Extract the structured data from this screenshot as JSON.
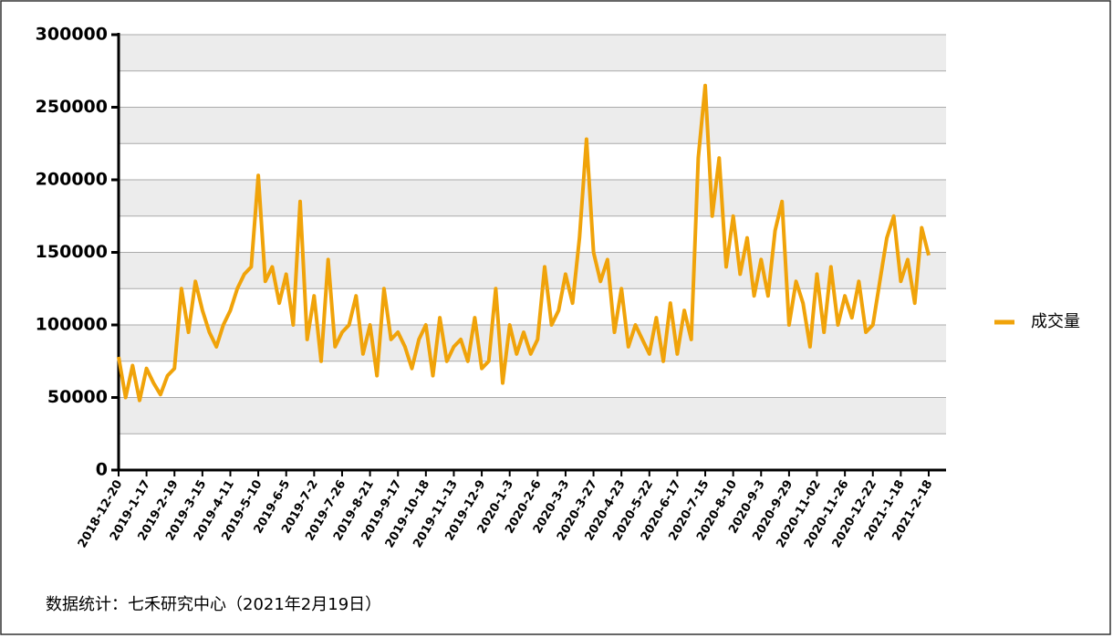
{
  "chart_data": {
    "type": "line",
    "categories": [
      "2018-12-20",
      null,
      null,
      null,
      "2019-1-17",
      null,
      null,
      null,
      "2019-2-19",
      null,
      null,
      null,
      "2019-3-15",
      null,
      null,
      null,
      "2019-4-11",
      null,
      null,
      null,
      "2019-5-10",
      null,
      null,
      null,
      "2019-6-5",
      null,
      null,
      null,
      "2019-7-2",
      null,
      null,
      null,
      "2019-7-26",
      null,
      null,
      null,
      "2019-8-21",
      null,
      null,
      null,
      "2019-9-17",
      null,
      null,
      null,
      "2019-10-18",
      null,
      null,
      null,
      "2019-11-13",
      null,
      null,
      null,
      "2019-12-9",
      null,
      null,
      null,
      "2020-1-3",
      null,
      null,
      null,
      "2020-2-6",
      null,
      null,
      null,
      "2020-3-3",
      null,
      null,
      null,
      "2020-3-27",
      null,
      null,
      null,
      "2020-4-23",
      null,
      null,
      null,
      "2020-5-22",
      null,
      null,
      null,
      "2020-6-17",
      null,
      null,
      null,
      "2020-7-15",
      null,
      null,
      null,
      "2020-8-10",
      null,
      null,
      null,
      "2020-9-3",
      null,
      null,
      null,
      "2020-9-29",
      null,
      null,
      null,
      "2020-11-02",
      null,
      null,
      null,
      "2020-11-26",
      null,
      null,
      null,
      "2020-12-22",
      null,
      null,
      null,
      "2021-1-18",
      null,
      null,
      null,
      "2021-2-18"
    ],
    "series": [
      {
        "name": "成交量",
        "color": "#f0a30a",
        "values": [
          78000,
          50000,
          72000,
          48000,
          70000,
          60000,
          52000,
          65000,
          70000,
          125000,
          95000,
          130000,
          110000,
          95000,
          85000,
          100000,
          110000,
          125000,
          135000,
          140000,
          203000,
          130000,
          140000,
          115000,
          135000,
          100000,
          185000,
          90000,
          120000,
          75000,
          145000,
          85000,
          95000,
          100000,
          120000,
          80000,
          100000,
          65000,
          125000,
          90000,
          95000,
          85000,
          70000,
          90000,
          100000,
          65000,
          105000,
          75000,
          85000,
          90000,
          75000,
          105000,
          70000,
          75000,
          125000,
          60000,
          100000,
          80000,
          95000,
          80000,
          90000,
          140000,
          100000,
          110000,
          135000,
          115000,
          160000,
          228000,
          150000,
          130000,
          145000,
          95000,
          125000,
          85000,
          100000,
          90000,
          80000,
          105000,
          75000,
          115000,
          80000,
          110000,
          90000,
          215000,
          265000,
          175000,
          215000,
          140000,
          175000,
          135000,
          160000,
          120000,
          145000,
          120000,
          165000,
          185000,
          100000,
          130000,
          115000,
          85000,
          135000,
          95000,
          140000,
          100000,
          120000,
          105000,
          130000,
          95000,
          100000,
          130000,
          160000,
          175000,
          130000,
          145000,
          115000,
          167000,
          148000
        ]
      }
    ],
    "ylim": [
      0,
      300000
    ],
    "yticks": [
      0,
      50000,
      100000,
      150000,
      200000,
      250000,
      300000
    ],
    "grid": true,
    "legend": "right",
    "note": "数据统计：七禾研究中心（2021年2月19日）"
  }
}
